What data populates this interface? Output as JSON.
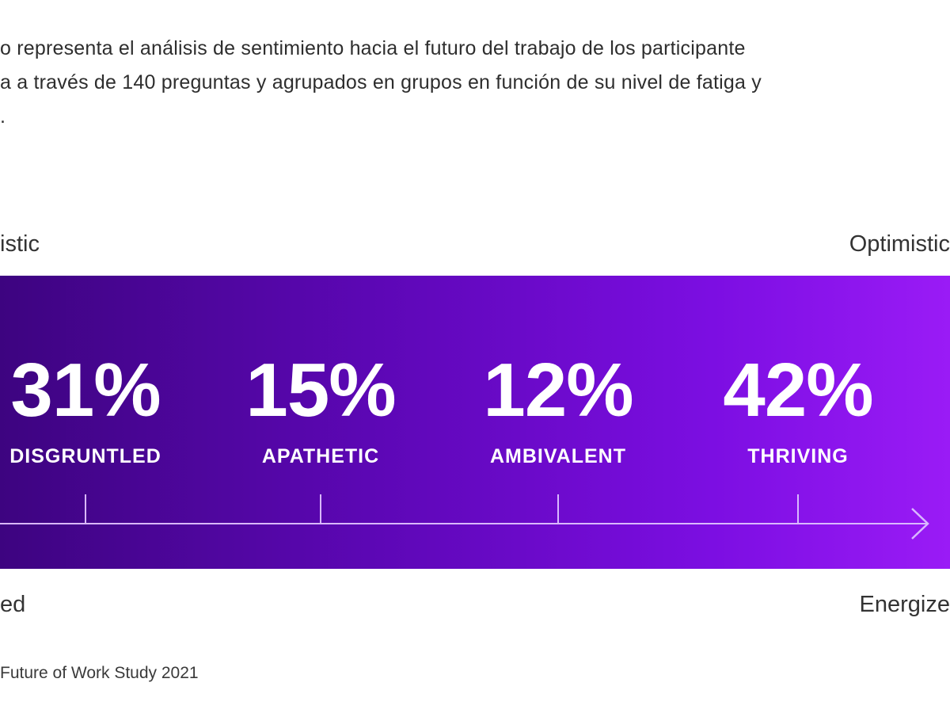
{
  "intro": {
    "line1": "o representa el análisis de sentimiento hacia el futuro del trabajo de los participante",
    "line2": "a a través de 140 preguntas y agrupados en grupos en función de su nivel de fatiga y",
    "line3": "."
  },
  "axis_labels": {
    "top_left": "istic",
    "top_right": "Optimistic",
    "bottom_left": "ed",
    "bottom_right": "Energize"
  },
  "source": "Future of Work Study 2021",
  "colors": {
    "band_start": "#3d0480",
    "band_end": "#9a1bf6",
    "text_on_band": "#ffffff"
  },
  "chart_data": {
    "type": "bar",
    "categories": [
      "DISGRUNTLED",
      "APATHETIC",
      "AMBIVALENT",
      "THRIVING"
    ],
    "values": [
      31,
      15,
      12,
      42
    ],
    "value_labels": [
      "31%",
      "15%",
      "12%",
      "42%"
    ],
    "unit": "%",
    "xlabel": "",
    "ylabel": "",
    "legend": "none",
    "grid": false
  }
}
